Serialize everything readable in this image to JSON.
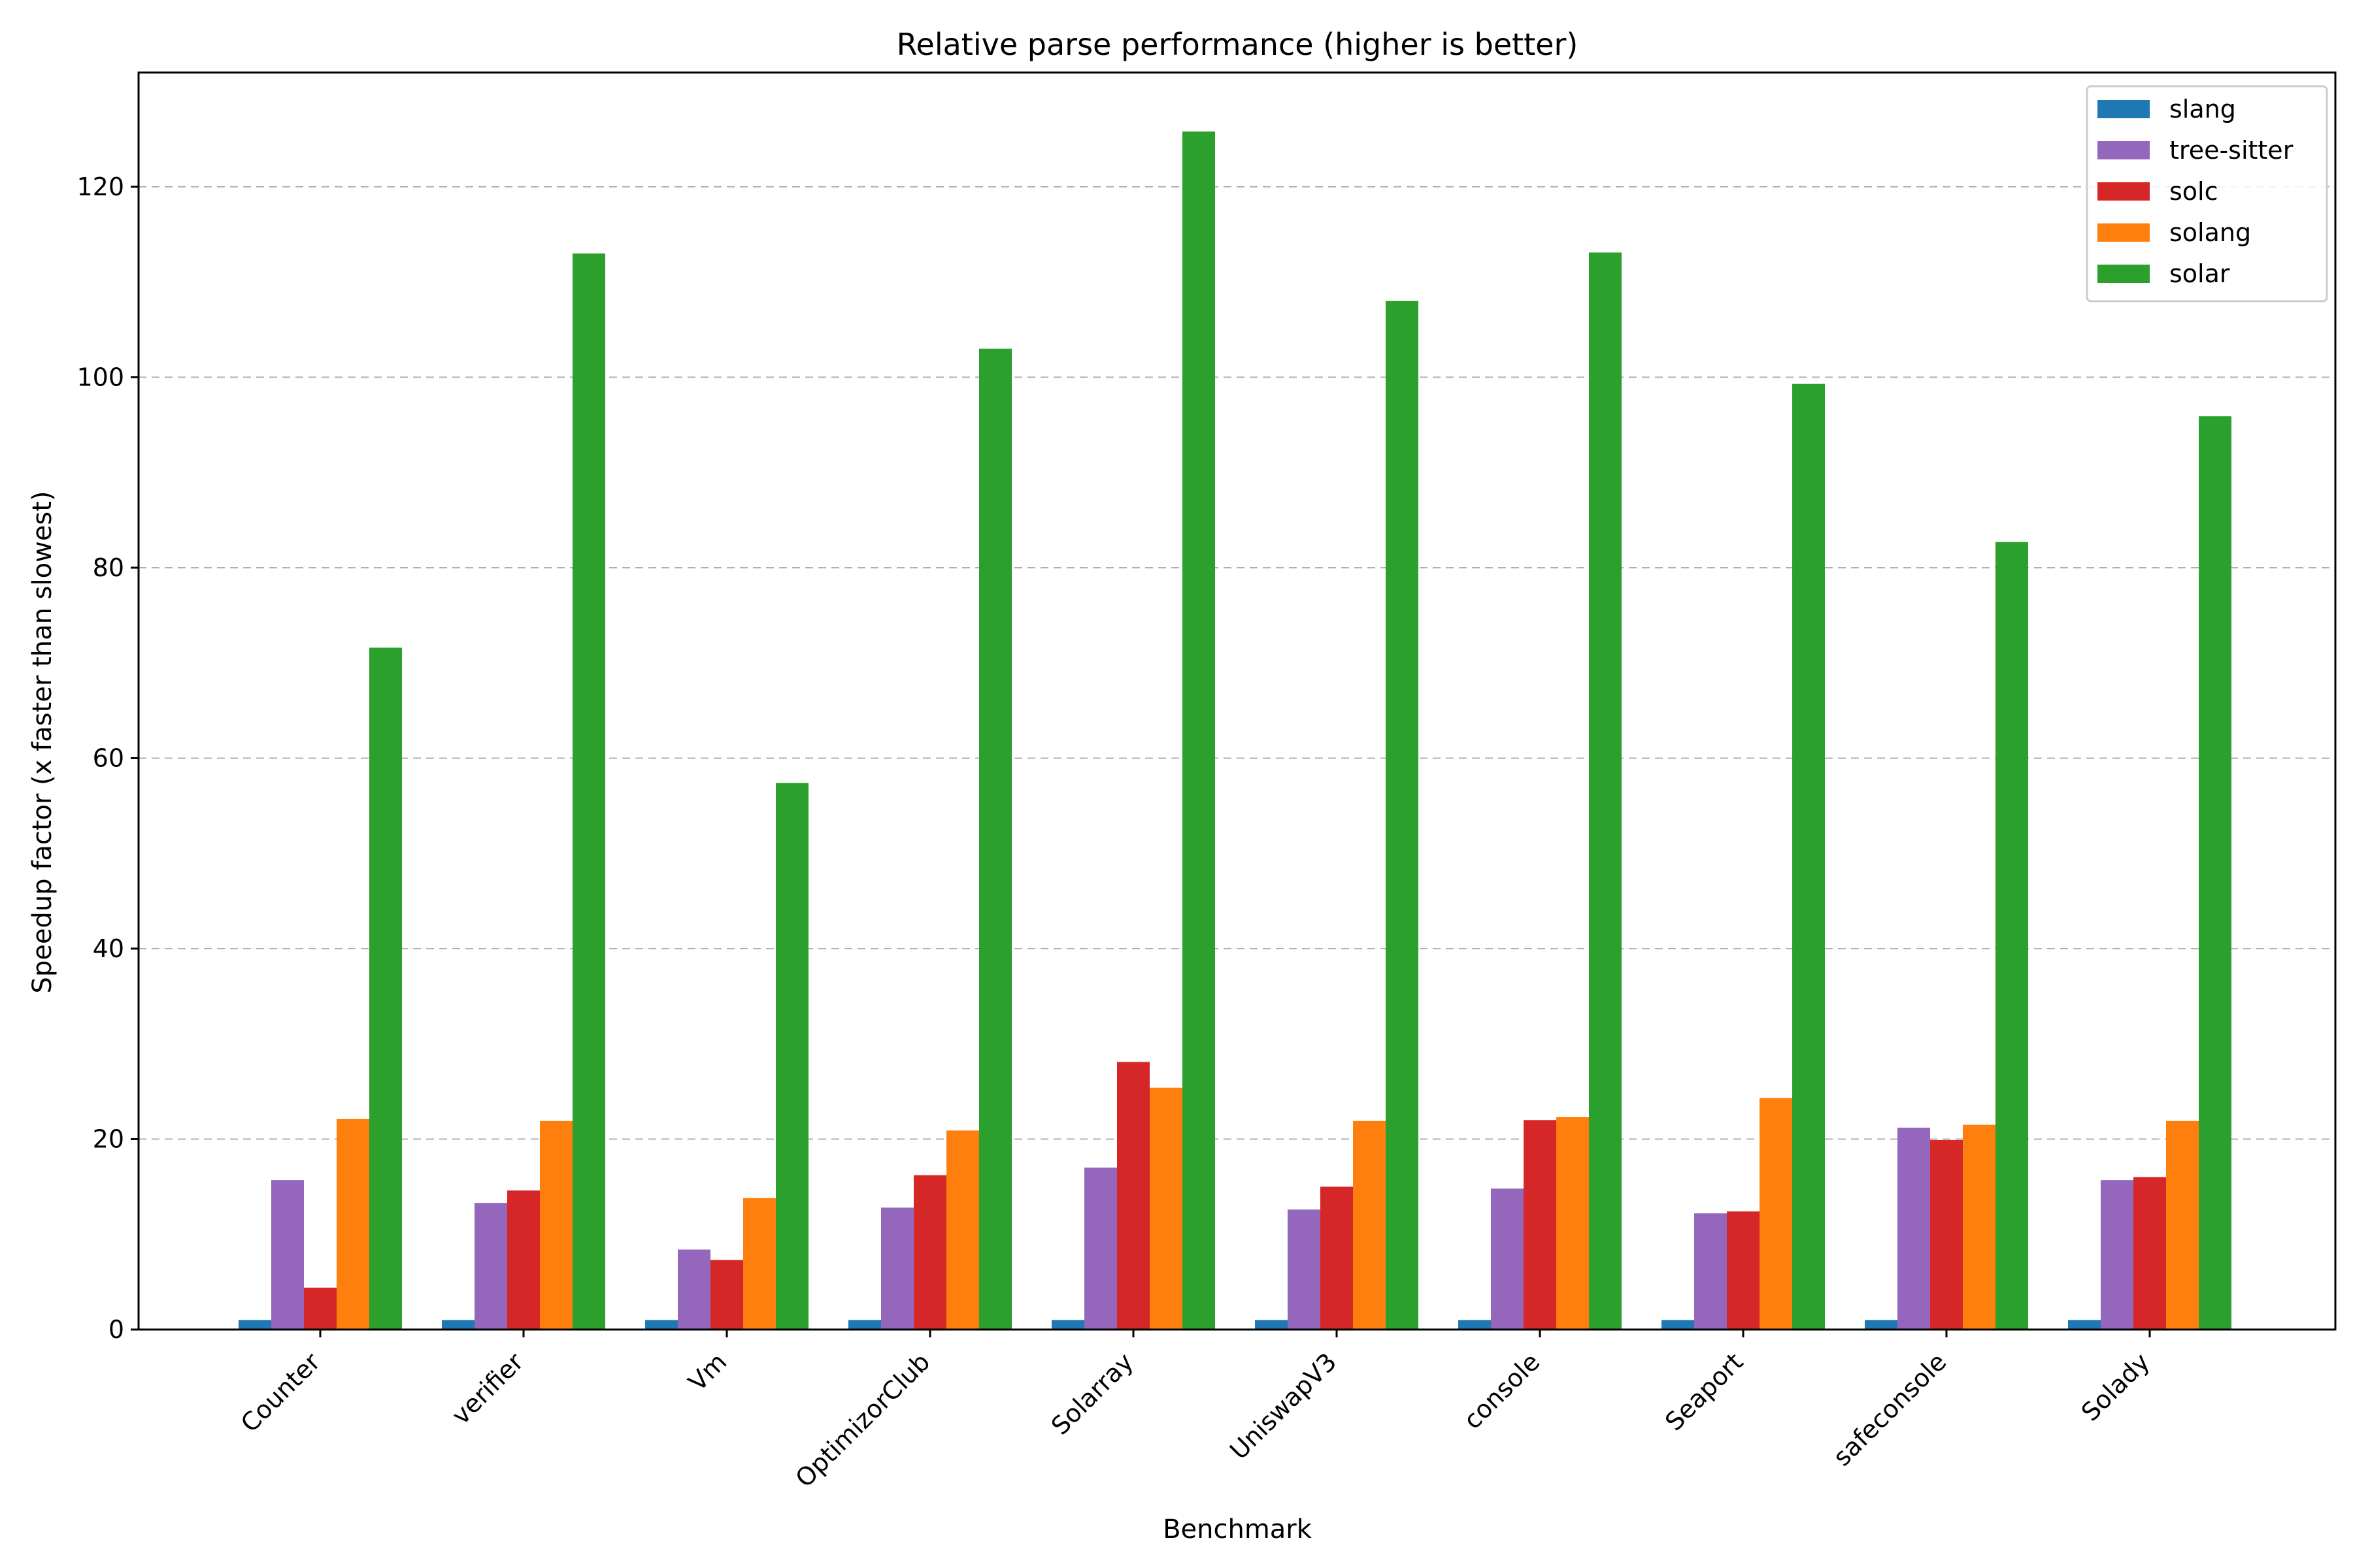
{
  "colors": {
    "slang": "#1f77b4",
    "tree-sitter": "#9467bd",
    "solc": "#d62728",
    "solang": "#ff7f0e",
    "solar": "#2ca02c",
    "grid": "#b0b0b0",
    "axis": "#000000"
  },
  "chart_data": {
    "type": "bar",
    "title": "Relative parse performance (higher is better)",
    "xlabel": "Benchmark",
    "ylabel": "Speedup factor (x faster than slowest)",
    "ylim": [
      0,
      132
    ],
    "yticks": [
      0,
      20,
      40,
      60,
      80,
      100,
      120
    ],
    "grid": "y-dashed",
    "legend_position": "top-right",
    "categories": [
      "Counter",
      "verifier",
      "Vm",
      "OptimizorClub",
      "Solarray",
      "UniswapV3",
      "console",
      "Seaport",
      "safeconsole",
      "Solady"
    ],
    "series": [
      {
        "name": "slang",
        "color_key": "slang",
        "values": [
          1.0,
          1.0,
          1.0,
          1.0,
          1.0,
          1.0,
          1.0,
          1.0,
          1.0,
          1.0
        ]
      },
      {
        "name": "tree-sitter",
        "color_key": "tree-sitter",
        "values": [
          15.7,
          13.3,
          8.4,
          12.8,
          17.0,
          12.6,
          14.8,
          12.2,
          21.2,
          15.7
        ]
      },
      {
        "name": "solc",
        "color_key": "solc",
        "values": [
          4.4,
          14.6,
          7.3,
          16.2,
          28.1,
          15.0,
          22.0,
          12.4,
          19.9,
          16.0
        ]
      },
      {
        "name": "solang",
        "color_key": "solang",
        "values": [
          22.1,
          21.9,
          13.8,
          20.9,
          25.4,
          21.9,
          22.3,
          24.3,
          21.5,
          21.9
        ]
      },
      {
        "name": "solar",
        "color_key": "solar",
        "values": [
          71.6,
          113.0,
          57.4,
          103.0,
          125.8,
          108.0,
          113.1,
          99.3,
          82.7,
          95.9
        ]
      }
    ]
  }
}
